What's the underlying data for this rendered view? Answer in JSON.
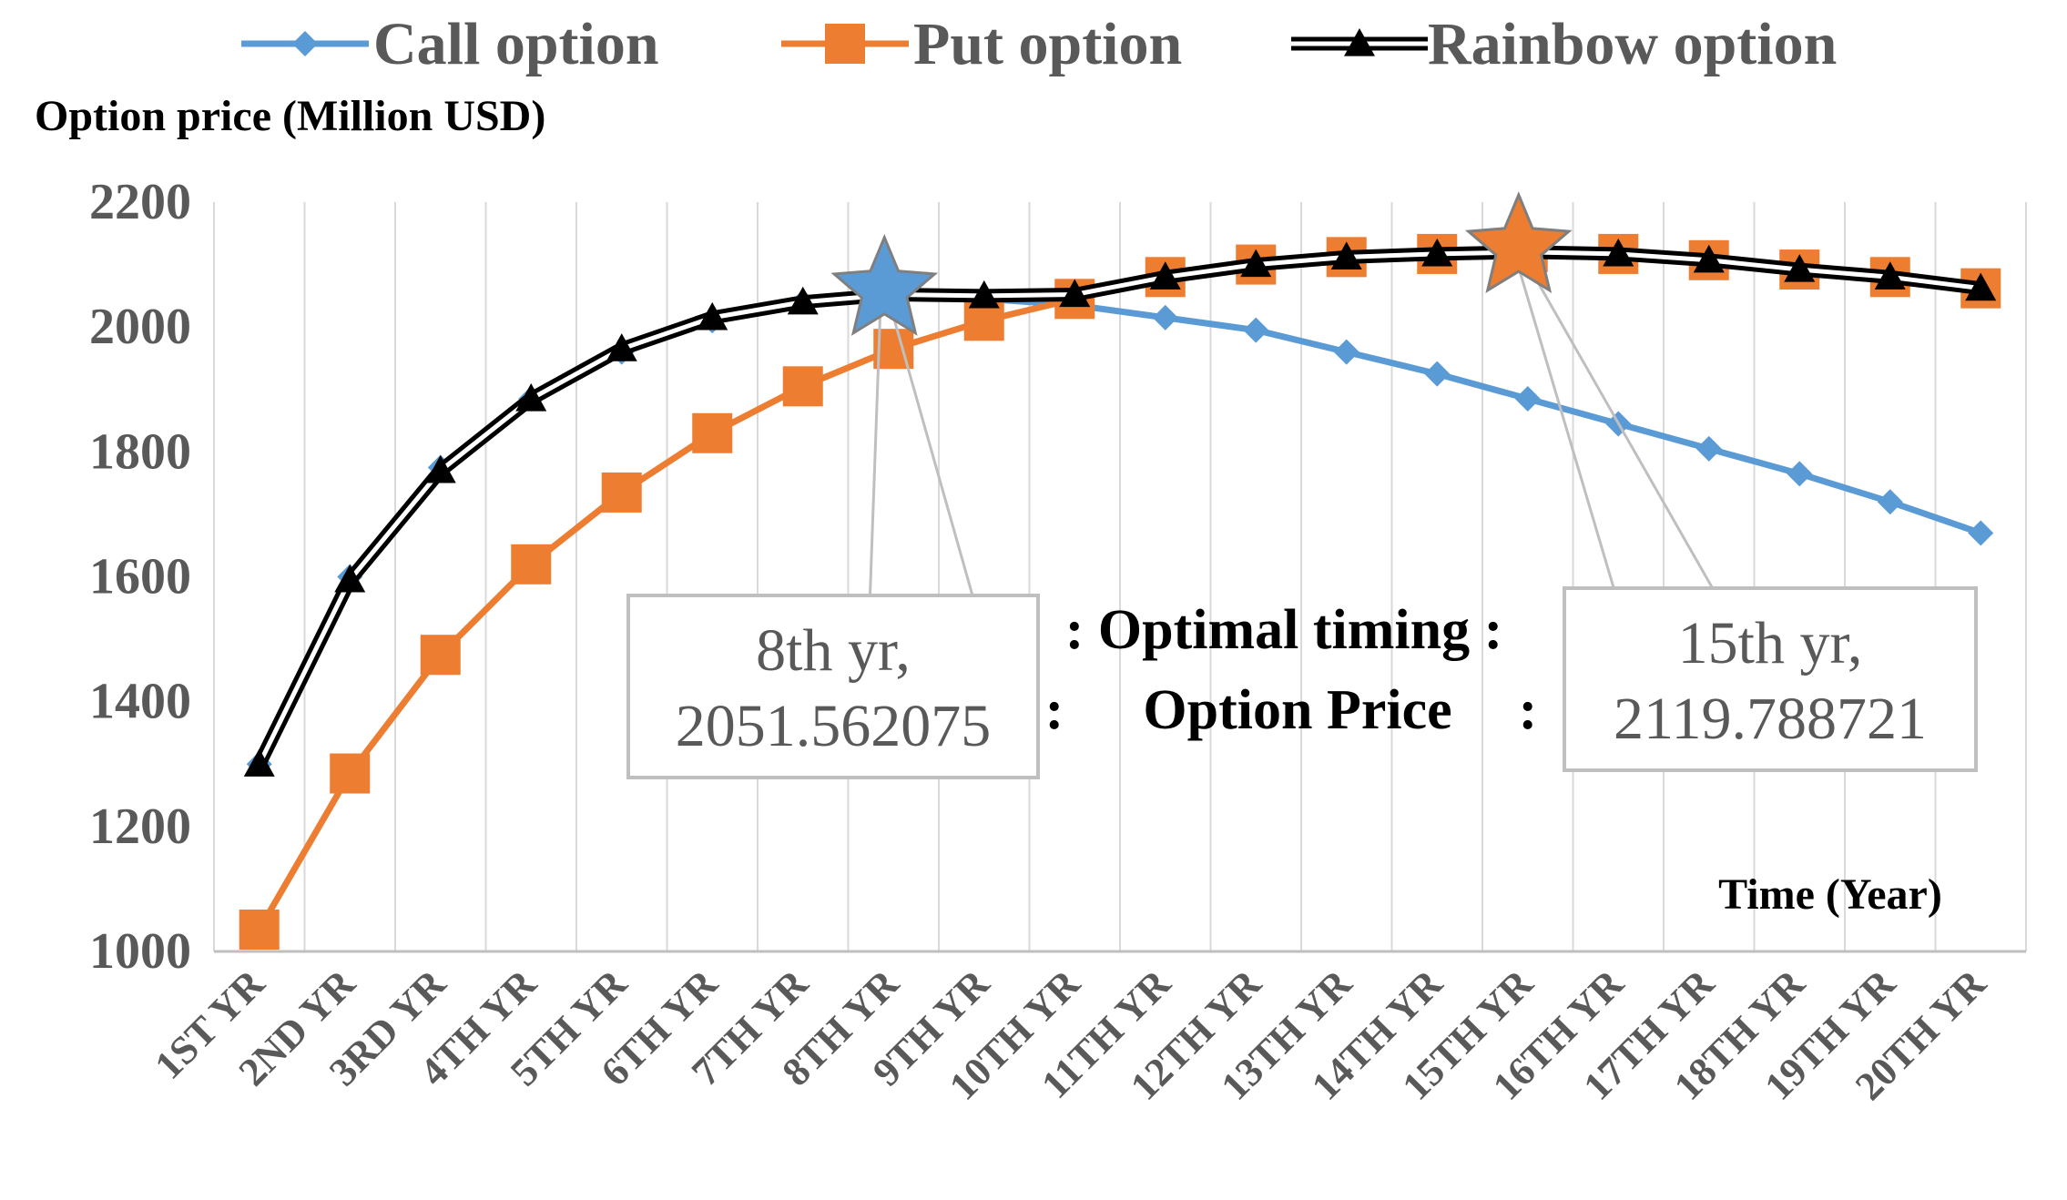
{
  "chart_data": {
    "type": "line",
    "title": "",
    "ylabel": "Option price (Million USD)",
    "xlabel": "Time (Year)",
    "ylim": [
      1000,
      2200
    ],
    "yticks": [
      1000,
      1200,
      1400,
      1600,
      1800,
      2000,
      2200
    ],
    "categories": [
      "1ST YR",
      "2ND YR",
      "3RD YR",
      "4TH YR",
      "5TH YR",
      "6TH YR",
      "7TH YR",
      "8TH YR",
      "9TH YR",
      "10TH YR",
      "11TH YR",
      "12TH YR",
      "13TH YR",
      "14TH YR",
      "15TH YR",
      "16TH YR",
      "17TH YR",
      "18TH YR",
      "19TH YR",
      "20TH YR"
    ],
    "legend_position": "top",
    "series": [
      {
        "name": "Call option",
        "marker": "diamond",
        "color": "#5B9BD5",
        "values": [
          1300,
          1600,
          1775,
          1885,
          1960,
          2010,
          2040,
          2052,
          2045,
          2035,
          2015,
          1995,
          1960,
          1925,
          1885,
          1845,
          1805,
          1765,
          1720,
          1670
        ]
      },
      {
        "name": "Put option",
        "marker": "square",
        "color": "#ED7D31",
        "values": [
          1035,
          1285,
          1475,
          1620,
          1735,
          1830,
          1905,
          1965,
          2010,
          2045,
          2080,
          2100,
          2112,
          2117,
          2120,
          2117,
          2107,
          2092,
          2080,
          2062
        ]
      },
      {
        "name": "Rainbow option",
        "marker": "triangle",
        "color": "#000000",
        "values": [
          1300,
          1595,
          1770,
          1885,
          1965,
          2015,
          2040,
          2052,
          2050,
          2052,
          2080,
          2100,
          2112,
          2117,
          2120,
          2117,
          2107,
          2092,
          2080,
          2062
        ]
      }
    ],
    "annotations": [
      {
        "name": "call-optimum",
        "marker": "star",
        "color": "#5B9BD5",
        "category_index": 7,
        "value": 2051.562075,
        "line1": "8th yr,",
        "line2": "2051.562075"
      },
      {
        "name": "put-optimum",
        "marker": "star",
        "color": "#ED7D31",
        "category_index": 14,
        "value": 2119.788721,
        "line1": "15th yr,",
        "line2": "2119.788721"
      }
    ],
    "mid_labels": {
      "line1": ": Optimal timing :",
      "line2_left": ":",
      "line2_center": "Option Price",
      "line2_right": ":"
    }
  }
}
